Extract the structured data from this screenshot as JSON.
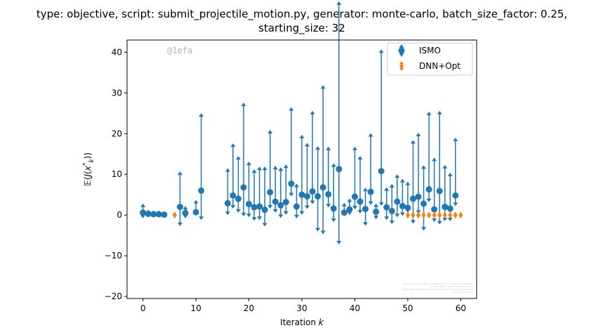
{
  "chart_data": {
    "type": "scatter",
    "title": [
      "type: objective, script: submit_projectile_motion.py, generator: monte-carlo, batch_size_factor: 0.25,",
      "starting_size: 32"
    ],
    "xlabel": "Iteration k",
    "ylabel": "E(J(x*_k))",
    "xlim": [
      -3,
      63
    ],
    "ylim": [
      -20.5,
      43
    ],
    "xticks": [
      0,
      10,
      20,
      30,
      40,
      50,
      60
    ],
    "yticks": [
      -20,
      -10,
      0,
      10,
      20,
      30,
      40
    ],
    "grid": false,
    "legend_position": "top-right",
    "watermark": "@1efa",
    "credits": [
      "By Kjetil Olsen Lye (kjetil.o.lye@gmail.com) and Kjetil's dissertation",
      "Commit: ISMO / submit_projectile_motion",
      "Repo: https://github.com/kjetil-lye/iterative_surrogate_optimization",
      "Hostname: ismo-run"
    ],
    "series": [
      {
        "name": "ISMO",
        "color": "#1f77b4",
        "marker": "circle",
        "x": [
          0,
          1,
          2,
          3,
          4,
          7,
          8,
          10,
          11,
          16,
          17,
          18,
          19,
          20,
          21,
          22,
          23,
          24,
          25,
          26,
          27,
          28,
          29,
          30,
          31,
          32,
          33,
          34,
          35,
          36,
          37,
          38,
          39,
          40,
          41,
          42,
          43,
          44,
          45,
          46,
          47,
          48,
          49,
          50,
          51,
          52,
          53,
          54,
          55,
          56,
          57,
          58,
          59
        ],
        "y": [
          0.6,
          0.3,
          0.2,
          0.2,
          0.1,
          2.0,
          0.5,
          0.7,
          6.0,
          2.9,
          4.8,
          4.0,
          6.8,
          2.7,
          1.9,
          2.1,
          1.3,
          5.6,
          3.3,
          2.4,
          3.2,
          7.7,
          2.1,
          5.0,
          4.6,
          5.8,
          4.6,
          6.8,
          5.1,
          1.6,
          11.3,
          0.6,
          1.4,
          4.5,
          3.3,
          1.5,
          5.7,
          0.8,
          10.8,
          1.9,
          1.0,
          3.3,
          2.2,
          1.8,
          4.0,
          4.5,
          2.8,
          6.3,
          1.4,
          5.9,
          2.0,
          1.6,
          4.8
        ],
        "err_low": [
          -0.9,
          -0.4,
          -0.3,
          -0.3,
          -0.2,
          -4.2,
          -0.8,
          -0.2,
          -6.7,
          -2.4,
          -2.7,
          -2.9,
          -6.6,
          -2.7,
          -2.8,
          -2.8,
          -3.6,
          -3.5,
          -2.2,
          -2.6,
          -2.6,
          -2.6,
          -2.4,
          -4.4,
          -2.6,
          -2.6,
          -8.1,
          -11.0,
          -2.7,
          -2.8,
          -18.0,
          -0.4,
          -0.9,
          -2.6,
          -2.4,
          -3.6,
          -2.7,
          -1.3,
          -8.0,
          -2.6,
          -2.7,
          -3.3,
          -1.9,
          -0.7,
          -5.6,
          -3.7,
          -6.1,
          -2.6,
          -2.6,
          -7.7,
          -3.0,
          -2.6,
          -2.1
        ],
        "err_high": [
          1.7,
          0.5,
          0.4,
          0.4,
          0.3,
          8.2,
          1.2,
          2.5,
          18.5,
          8.1,
          12.3,
          10.0,
          20.3,
          9.9,
          8.8,
          9.3,
          10.1,
          14.8,
          8.3,
          8.8,
          8.7,
          18.3,
          5.1,
          14.2,
          12.6,
          19.3,
          11.8,
          24.6,
          11.2,
          10.6,
          40.7,
          1.9,
          2.2,
          11.8,
          10.7,
          4.7,
          13.9,
          1.5,
          29.4,
          4.4,
          6.1,
          6.2,
          6.2,
          5.9,
          13.9,
          15.2,
          8.9,
          18.6,
          12.2,
          19.2,
          9.8,
          8.3,
          13.7
        ]
      },
      {
        "name": "DNN+Opt",
        "color": "#ff7f0e",
        "marker": "diamond",
        "x": [
          6,
          50,
          51,
          52,
          53,
          54,
          55,
          56,
          57,
          58,
          59,
          60
        ],
        "y": [
          0.0,
          0.0,
          0.0,
          0.0,
          0.0,
          0.0,
          0.0,
          0.0,
          0.0,
          0.0,
          0.0,
          0.0
        ]
      }
    ]
  }
}
